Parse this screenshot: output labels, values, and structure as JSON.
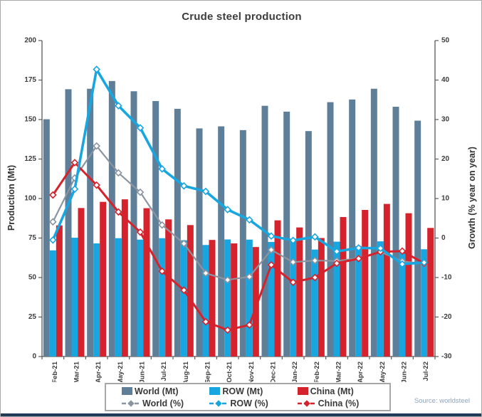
{
  "title": "Crude steel production",
  "source": "Source: worldsteel",
  "chart_data": {
    "type": "bar+line combo",
    "title": "Crude steel production",
    "grid": false,
    "legend_position": "bottom",
    "categories": [
      "Feb-21",
      "Mar-21",
      "Apr-21",
      "May-21",
      "Jun-21",
      "Jul-21",
      "Aug-21",
      "Sep-21",
      "Oct-21",
      "Nov-21",
      "Dec-21",
      "Jan-22",
      "Feb-22",
      "Mar-22",
      "Apr-22",
      "May-22",
      "Jun-22",
      "Jul-22"
    ],
    "left_axis": {
      "label": "Production (Mt)",
      "min": 0,
      "max": 200,
      "ticks": [
        0,
        25,
        50,
        75,
        100,
        125,
        150,
        175,
        200
      ]
    },
    "right_axis": {
      "label": "Growth (% year on year)",
      "min": -30,
      "max": 50,
      "ticks": [
        -30,
        -20,
        -10,
        0,
        10,
        20,
        30,
        40,
        50
      ]
    },
    "bar_series": [
      {
        "name": "World (Mt)",
        "color": "#5f7f98",
        "axis": "left",
        "values": [
          150.2,
          169.2,
          169.5,
          174.4,
          167.9,
          161.7,
          156.8,
          144.4,
          145.7,
          143.3,
          158.7,
          155.0,
          142.7,
          161.0,
          162.7,
          169.5,
          158.1,
          149.3
        ]
      },
      {
        "name": "ROW (Mt)",
        "color": "#18a6e0",
        "axis": "left",
        "values": [
          67.2,
          75.2,
          71.6,
          74.9,
          74.0,
          74.9,
          73.6,
          70.6,
          74.1,
          74.0,
          72.5,
          73.3,
          67.7,
          72.7,
          69.9,
          72.9,
          67.4,
          67.9
        ]
      },
      {
        "name": "China (Mt)",
        "color": "#d5232d",
        "axis": "left",
        "values": [
          83.0,
          94.0,
          97.9,
          99.5,
          93.9,
          86.8,
          83.2,
          73.8,
          71.6,
          69.3,
          86.2,
          81.7,
          75.0,
          88.3,
          92.8,
          96.6,
          90.7,
          81.4
        ]
      }
    ],
    "line_series": [
      {
        "name": "World (%)",
        "color": "#8a95a1",
        "axis": "right",
        "width": 2.2,
        "marker": "diamond-hollow",
        "values": [
          4.1,
          15.2,
          23.3,
          16.5,
          11.6,
          3.3,
          -1.4,
          -8.9,
          -10.6,
          -9.8,
          -3.0,
          -6.1,
          -5.7,
          -5.8,
          -5.1,
          -3.5,
          -5.9,
          -6.5
        ]
      },
      {
        "name": "China (%)",
        "color": "#d5232d",
        "axis": "right",
        "width": 3,
        "marker": "diamond-hollow",
        "values": [
          10.9,
          19.1,
          13.4,
          6.6,
          1.5,
          -8.4,
          -13.2,
          -21.2,
          -23.3,
          -22.0,
          -6.8,
          -11.2,
          -10.0,
          -6.4,
          -5.2,
          -3.5,
          -3.3,
          -6.4
        ]
      },
      {
        "name": "ROW (%)",
        "color": "#18a6e0",
        "axis": "right",
        "width": 3.6,
        "marker": "diamond-hollow",
        "values": [
          -0.5,
          12.4,
          42.7,
          33.5,
          27.9,
          17.5,
          13.2,
          11.8,
          7.2,
          4.6,
          0.5,
          -0.6,
          0.3,
          -3.4,
          -2.5,
          -2.6,
          -6.6,
          -6.2
        ]
      }
    ],
    "legend_row1": [
      "World (Mt)",
      "ROW (Mt)",
      "China (Mt)"
    ],
    "legend_row2": [
      "World (%)",
      "ROW (%)",
      "China (%)"
    ]
  }
}
